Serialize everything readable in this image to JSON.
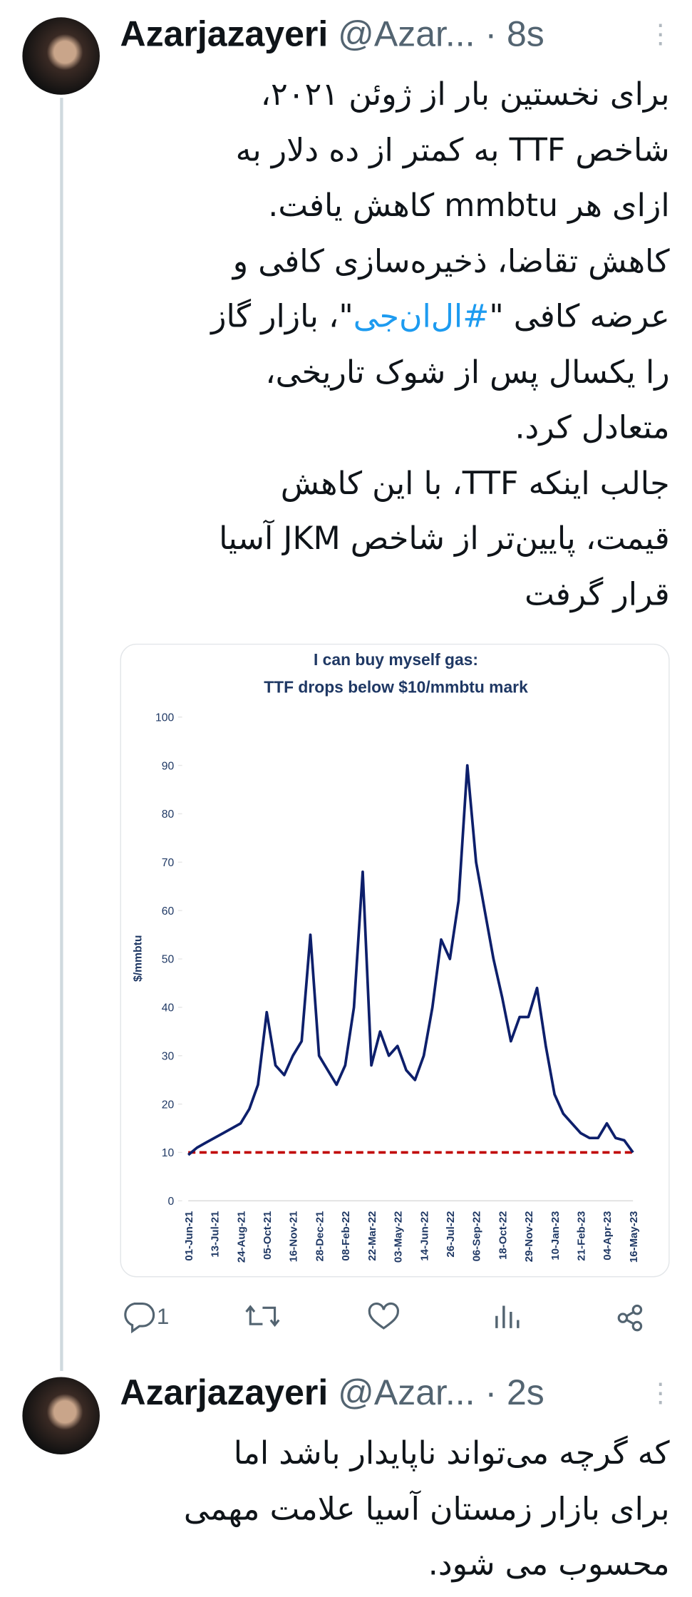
{
  "tweets": [
    {
      "name": "Azarjazayeri",
      "handle": "@Azar...",
      "time": "· 8s",
      "lines": [
        "برای نخستین بار از ژوئن ۲۰۲۱،",
        "شاخص TTF به کمتر از ده دلار به",
        "ازای هر mmbtu  کاهش یافت.",
        "کاهش تقاضا، ذخیره‌سازی کافی و",
        [
          "عرضه کافی \"",
          "#ال‌ان‌جی",
          "\"، بازار گاز"
        ],
        "را یکسال پس از شوک تاریخی،",
        "متعادل کرد.",
        "جالب اینکه TTF،  با این کاهش",
        "قیمت، پایین‌تر از شاخص JKM آسیا",
        "قرار گرفت"
      ],
      "chart": {
        "type": "line",
        "title": [
          "I can buy myself gas:",
          "TTF drops below $10/mmbtu mark"
        ],
        "y_label": "$/mmbtu",
        "categories": [
          "01-Jun-21",
          null,
          null,
          "13-Jul-21",
          null,
          null,
          "24-Aug-21",
          null,
          null,
          "05-Oct-21",
          null,
          null,
          "16-Nov-21",
          null,
          null,
          "28-Dec-21",
          null,
          null,
          "08-Feb-22",
          null,
          null,
          "22-Mar-22",
          null,
          null,
          "03-May-22",
          null,
          null,
          "14-Jun-22",
          null,
          null,
          "26-Jul-22",
          null,
          null,
          "06-Sep-22",
          null,
          null,
          "18-Oct-22",
          null,
          null,
          "29-Nov-22",
          null,
          null,
          "10-Jan-23",
          null,
          null,
          "21-Feb-23",
          null,
          null,
          "04-Apr-23",
          null,
          null,
          "16-May-23"
        ],
        "values": [
          9.5,
          11,
          12,
          13,
          14,
          15,
          16,
          19,
          24,
          39,
          28,
          26,
          30,
          33,
          55,
          30,
          27,
          24,
          28,
          40,
          68,
          28,
          35,
          30,
          32,
          27,
          25,
          30,
          40,
          54,
          50,
          62,
          90,
          70,
          60,
          50,
          42,
          33,
          38,
          38,
          44,
          32,
          22,
          18,
          16,
          14,
          13,
          13,
          16,
          13,
          12.5,
          10
        ],
        "color": "#0d1f6b",
        "threshold": 10,
        "threshold_color": "#c00000",
        "ylim": [
          0,
          100
        ],
        "yticks": [
          0,
          10,
          20,
          30,
          40,
          50,
          60,
          70,
          80,
          90,
          100
        ]
      },
      "reply_count": 1
    },
    {
      "name": "Azarjazayeri",
      "handle": "@Azar...",
      "time": "· 2s",
      "lines": [
        "که گرچه می‌تواند ناپایدار باشد اما",
        "برای بازار زمستان آسیا علامت مهمی",
        "محسوب می شود."
      ]
    }
  ]
}
